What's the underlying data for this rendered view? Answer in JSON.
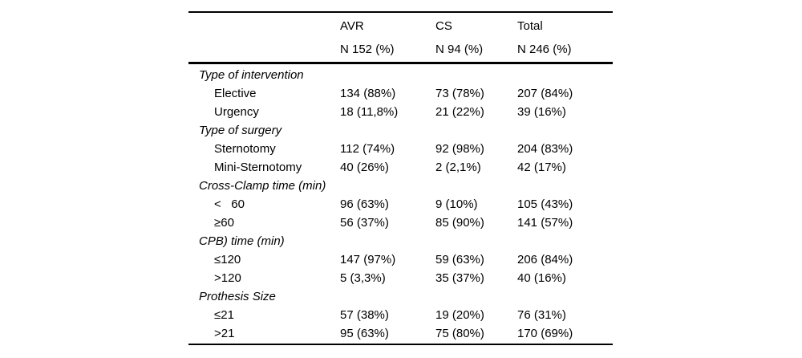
{
  "table": {
    "header": {
      "label": "",
      "avr": "AVR",
      "cs": "CS",
      "total": "Total"
    },
    "subheader": {
      "label": "",
      "avr": "N 152 (%)",
      "cs": "N 94 (%)",
      "total": "N 246 (%)"
    },
    "rows": [
      {
        "type": "section",
        "label": "Type of intervention",
        "avr": "",
        "cs": "",
        "total": ""
      },
      {
        "type": "item",
        "label": "Elective",
        "avr": "134 (88%)",
        "cs": "73 (78%)",
        "total": "207 (84%)"
      },
      {
        "type": "item",
        "label": "Urgency",
        "avr": "18 (11,8%)",
        "cs": "21 (22%)",
        "total": "39 (16%)"
      },
      {
        "type": "section",
        "label": "Type of surgery",
        "avr": "",
        "cs": "",
        "total": ""
      },
      {
        "type": "item",
        "label": "Sternotomy",
        "avr": "112 (74%)",
        "cs": "92 (98%)",
        "total": "204 (83%)"
      },
      {
        "type": "item",
        "label": "Mini-Sternotomy",
        "avr": "40 (26%)",
        "cs": "2 (2,1%)",
        "total": "42 (17%)"
      },
      {
        "type": "section",
        "label": "Cross-Clamp time (min)",
        "avr": "",
        "cs": "",
        "total": ""
      },
      {
        "type": "item",
        "label": "<   60",
        "avr": "96 (63%)",
        "cs": "9 (10%)",
        "total": "105 (43%)"
      },
      {
        "type": "item",
        "label": "≥60",
        "avr": "56 (37%)",
        "cs": "85 (90%)",
        "total": "141 (57%)"
      },
      {
        "type": "section",
        "label": "CPB) time (min)",
        "avr": "",
        "cs": "",
        "total": ""
      },
      {
        "type": "item",
        "label": "≤120",
        "avr": "147 (97%)",
        "cs": "59 (63%)",
        "total": "206 (84%)"
      },
      {
        "type": "item",
        "label": ">120",
        "avr": "5 (3,3%)",
        "cs": "35 (37%)",
        "total": "40 (16%)"
      },
      {
        "type": "section",
        "label": "Prothesis Size",
        "avr": "",
        "cs": "",
        "total": ""
      },
      {
        "type": "item",
        "label": "≤21",
        "avr": "57 (38%)",
        "cs": "19 (20%)",
        "total": "76 (31%)"
      },
      {
        "type": "item",
        "label": ">21",
        "avr": "95 (63%)",
        "cs": "75 (80%)",
        "total": "170 (69%)"
      }
    ],
    "colors": {
      "text": "#000000",
      "background": "#ffffff",
      "rule": "#000000"
    }
  }
}
